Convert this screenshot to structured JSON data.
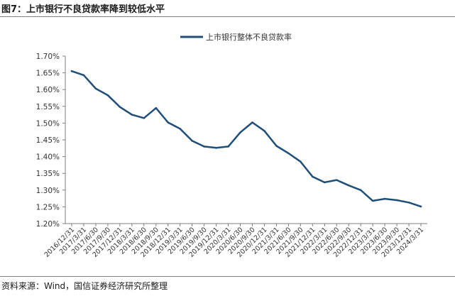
{
  "figure": {
    "title": "图7：上市银行不良贷款率降到较低水平",
    "source": "资料来源：Wind，国信证券经济研究所整理"
  },
  "colors": {
    "series": "#1F4E79",
    "axis": "#7f7f7f",
    "text": "#333333"
  },
  "chart_data": {
    "type": "line",
    "title": "",
    "xlabel": "",
    "ylabel": "",
    "ylim": [
      0.012,
      0.017
    ],
    "yticks": [
      "1.20%",
      "1.25%",
      "1.30%",
      "1.35%",
      "1.40%",
      "1.45%",
      "1.50%",
      "1.55%",
      "1.60%",
      "1.65%",
      "1.70%"
    ],
    "ytick_values": [
      0.012,
      0.0125,
      0.013,
      0.0135,
      0.014,
      0.0145,
      0.015,
      0.0155,
      0.016,
      0.0165,
      0.017
    ],
    "grid": false,
    "legend_position": "top-center",
    "categories": [
      "2016/12/31",
      "2017/3/31",
      "2017/6/30",
      "2017/9/30",
      "2017/12/31",
      "2018/3/31",
      "2018/6/30",
      "2018/9/30",
      "2018/12/31",
      "2019/3/31",
      "2019/6/30",
      "2019/9/30",
      "2019/12/31",
      "2020/3/31",
      "2020/6/30",
      "2020/9/30",
      "2020/12/31",
      "2021/3/31",
      "2021/6/30",
      "2021/9/30",
      "2021/12/31",
      "2022/3/31",
      "2022/6/30",
      "2022/9/30",
      "2022/12/31",
      "2023/3/31",
      "2023/6/30",
      "2023/9/30",
      "2023/12/31",
      "2024/3/31"
    ],
    "series": [
      {
        "name": "上市银行整体不良贷款率",
        "values": [
          0.01655,
          0.01643,
          0.01603,
          0.01583,
          0.01548,
          0.01525,
          0.01515,
          0.01545,
          0.01502,
          0.01483,
          0.01447,
          0.0143,
          0.01426,
          0.0143,
          0.01472,
          0.01502,
          0.01477,
          0.01432,
          0.0141,
          0.01385,
          0.0134,
          0.01323,
          0.0133,
          0.01314,
          0.013,
          0.01268,
          0.01274,
          0.0127,
          0.01263,
          0.01251
        ]
      }
    ]
  }
}
